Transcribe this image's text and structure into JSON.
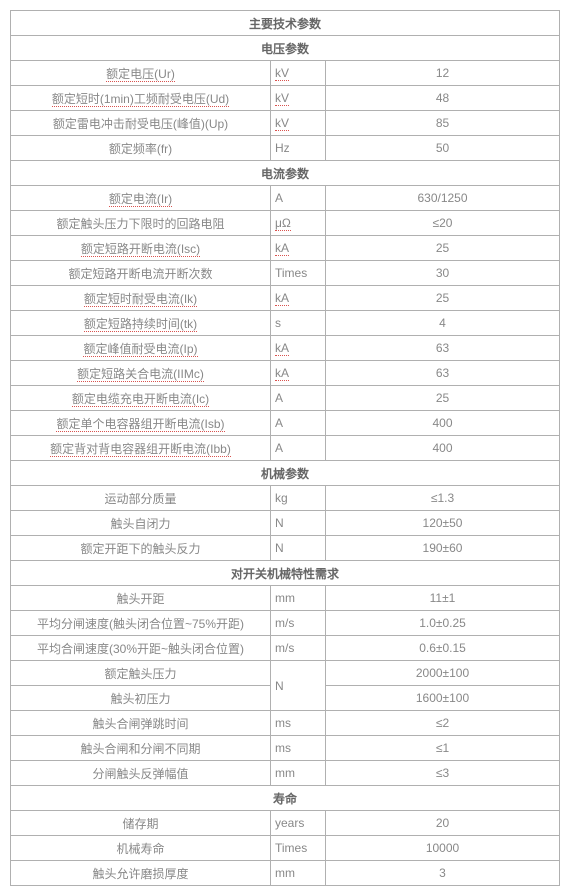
{
  "title": "主要技术参数",
  "sections": [
    {
      "header": "电压参数",
      "rows": [
        {
          "param": "额定电压(Ur)",
          "unit": "kV",
          "value": "12",
          "uparam": true,
          "uunit": true
        },
        {
          "param": "额定短时(1min)工频耐受电压(Ud)",
          "unit": "kV",
          "value": "48",
          "uparam": true,
          "uunit": true
        },
        {
          "param": "额定雷电冲击耐受电压(峰值)(Up)",
          "unit": "kV",
          "value": "85",
          "uparam": false,
          "uunit": true
        },
        {
          "param": "额定频率(fr)",
          "unit": "Hz",
          "value": "50",
          "uparam": false,
          "uunit": false
        }
      ]
    },
    {
      "header": "电流参数",
      "rows": [
        {
          "param": "额定电流(Ir)",
          "unit": "A",
          "value": "630/1250",
          "uparam": true,
          "uunit": false
        },
        {
          "param": "额定触头压力下限时的回路电阻",
          "unit": "μΩ",
          "value": "≤20",
          "uparam": false,
          "uunit": true
        },
        {
          "param": "额定短路开断电流(Isc)",
          "unit": "kA",
          "value": "25",
          "uparam": true,
          "uunit": true
        },
        {
          "param": "额定短路开断电流开断次数",
          "unit": "Times",
          "value": "30",
          "uparam": false,
          "uunit": false
        },
        {
          "param": "额定短时耐受电流(Ik)",
          "unit": "kA",
          "value": "25",
          "uparam": true,
          "uunit": true
        },
        {
          "param": "额定短路持续时间(tk)",
          "unit": "s",
          "value": "4",
          "uparam": true,
          "uunit": false
        },
        {
          "param": "额定峰值耐受电流(Ip)",
          "unit": "kA",
          "value": "63",
          "uparam": true,
          "uunit": true
        },
        {
          "param": "额定短路关合电流(IIMc)",
          "unit": "kA",
          "value": "63",
          "uparam": true,
          "uunit": true
        },
        {
          "param": "额定电缆充电开断电流(Ic)",
          "unit": "A",
          "value": "25",
          "uparam": true,
          "uunit": false
        },
        {
          "param": "额定单个电容器组开断电流(Isb)",
          "unit": "A",
          "value": "400",
          "uparam": true,
          "uunit": false
        },
        {
          "param": "额定背对背电容器组开断电流(Ibb)",
          "unit": "A",
          "value": "400",
          "uparam": true,
          "uunit": false
        }
      ]
    },
    {
      "header": "机械参数",
      "rows": [
        {
          "param": "运动部分质量",
          "unit": "kg",
          "value": "≤1.3",
          "uparam": false,
          "uunit": false
        },
        {
          "param": "触头自闭力",
          "unit": "N",
          "value": "120±50",
          "uparam": false,
          "uunit": false
        },
        {
          "param": "额定开距下的触头反力",
          "unit": "N",
          "value": "190±60",
          "uparam": false,
          "uunit": false
        }
      ]
    },
    {
      "header": "对开关机械特性需求",
      "rows": [
        {
          "param": "触头开距",
          "unit": "mm",
          "value": "11±1",
          "uparam": false,
          "uunit": false
        },
        {
          "param": "平均分闸速度(触头闭合位置~75%开距)",
          "unit": "m/s",
          "value": "1.0±0.25",
          "uparam": false,
          "uunit": false
        },
        {
          "param": "平均合闸速度(30%开距~触头闭合位置)",
          "unit": "m/s",
          "value": "0.6±0.15",
          "uparam": false,
          "uunit": false
        },
        {
          "param": "额定触头压力",
          "unit": "N",
          "value": "2000±100",
          "uparam": false,
          "uunit": false,
          "merge": 2
        },
        {
          "param": "触头初压力",
          "unit": null,
          "value": "1600±100",
          "uparam": false,
          "uunit": false
        },
        {
          "param": "触头合闸弹跳时间",
          "unit": "ms",
          "value": "≤2",
          "uparam": false,
          "uunit": false
        },
        {
          "param": "触头合闸和分闸不同期",
          "unit": "ms",
          "value": "≤1",
          "uparam": false,
          "uunit": false
        },
        {
          "param": "分闸触头反弹幅值",
          "unit": "mm",
          "value": "≤3",
          "uparam": false,
          "uunit": false
        }
      ]
    },
    {
      "header": "寿命",
      "rows": [
        {
          "param": "储存期",
          "unit": "years",
          "value": "20",
          "uparam": false,
          "uunit": false
        },
        {
          "param": "机械寿命",
          "unit": "Times",
          "value": "10000",
          "uparam": false,
          "uunit": false
        },
        {
          "param": "触头允许磨损厚度",
          "unit": "mm",
          "value": "3",
          "uparam": false,
          "uunit": false
        }
      ]
    }
  ]
}
